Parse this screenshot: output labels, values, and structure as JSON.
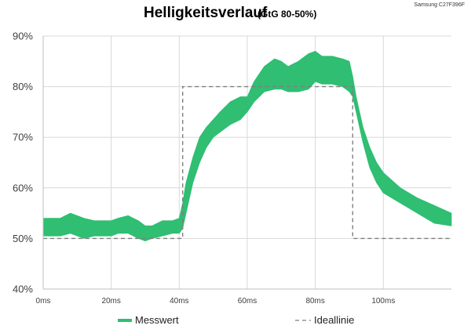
{
  "chart_data": {
    "type": "area",
    "title": "Helligkeitsverlauf",
    "subtitle": "(GtG 80-50%)",
    "model": "Samsung C27F396F",
    "xlabel": "",
    "ylabel": "",
    "xlim": [
      0,
      120
    ],
    "ylim": [
      40,
      90
    ],
    "x_ticks": [
      0,
      20,
      40,
      60,
      80,
      100
    ],
    "x_tick_labels": [
      "0ms",
      "20ms",
      "40ms",
      "60ms",
      "80ms",
      "100ms"
    ],
    "y_ticks": [
      40,
      50,
      60,
      70,
      80,
      90
    ],
    "y_tick_labels": [
      "40%",
      "50%",
      "60%",
      "70%",
      "80%",
      "90%"
    ],
    "grid": true,
    "legend_position": "bottom",
    "colors": {
      "measured": "#2fbe72",
      "ideal": "#7f7f7f",
      "grid": "#d9d9d9",
      "axis": "#bfbfbf"
    },
    "series": [
      {
        "name": "Messwert",
        "style": "band",
        "x": [
          0,
          5,
          8,
          12,
          15,
          20,
          22,
          25,
          28,
          30,
          32,
          35,
          38,
          40,
          41,
          42,
          44,
          46,
          48,
          50,
          52,
          55,
          58,
          60,
          62,
          65,
          68,
          70,
          72,
          75,
          78,
          80,
          82,
          85,
          88,
          90,
          91,
          92,
          94,
          96,
          98,
          100,
          105,
          110,
          115,
          120
        ],
        "low": [
          50.5,
          50.5,
          51,
          50,
          50.5,
          50.5,
          51,
          51,
          50,
          49.5,
          50,
          50.5,
          51,
          51,
          52,
          55,
          61,
          65,
          68,
          70,
          71,
          72.5,
          73.5,
          75,
          77,
          79,
          79.5,
          79.5,
          79,
          79,
          79.5,
          81,
          80.5,
          80.5,
          80,
          79,
          78,
          75,
          69,
          64,
          61,
          59,
          57,
          55,
          53,
          52.5
        ],
        "high": [
          54,
          54,
          55,
          54,
          53.5,
          53.5,
          54,
          54.5,
          53.5,
          52.5,
          52.5,
          53.5,
          53.5,
          54,
          57,
          61,
          66,
          70,
          72,
          73.5,
          75,
          77,
          78,
          78,
          81,
          84,
          85.5,
          85,
          84,
          85,
          86.5,
          87,
          86,
          86,
          85.5,
          85,
          82,
          78,
          72,
          68,
          65,
          63,
          60,
          58,
          56.5,
          55
        ]
      },
      {
        "name": "Ideallinie",
        "style": "dashed",
        "x": [
          0,
          41,
          41,
          91,
          91,
          120
        ],
        "y": [
          50,
          50,
          80,
          80,
          50,
          50
        ]
      }
    ]
  }
}
